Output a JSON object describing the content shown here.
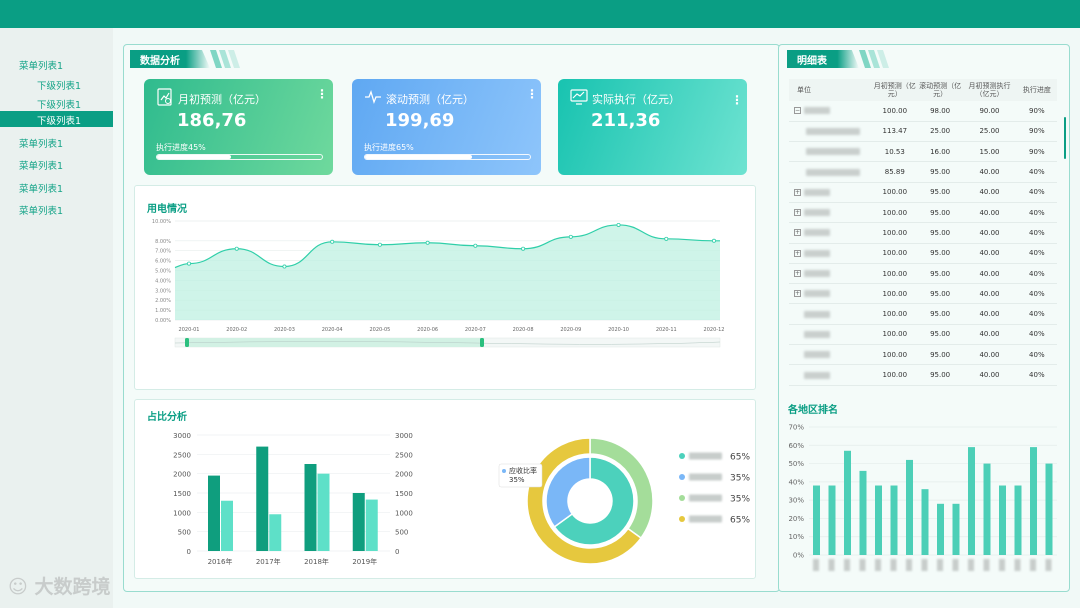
{
  "sidebar": {
    "items": [
      {
        "label": "菜单列表1",
        "level": 1,
        "active": false
      },
      {
        "label": "下级列表1",
        "level": 2,
        "active": false
      },
      {
        "label": "下级列表1",
        "level": 2,
        "active": false
      },
      {
        "label": "下级列表1",
        "level": 2,
        "active": true
      },
      {
        "label": "菜单列表1",
        "level": 1,
        "active": false
      },
      {
        "label": "菜单列表1",
        "level": 1,
        "active": false
      },
      {
        "label": "菜单列表1",
        "level": 1,
        "active": false
      },
      {
        "label": "菜单列表1",
        "level": 1,
        "active": false
      }
    ]
  },
  "analysis": {
    "title": "数据分析",
    "cards": [
      {
        "label": "月初预测（亿元）",
        "value": "186,76",
        "progress_label": "执行进度45%",
        "progress": 0.45,
        "icon": "document-chart-icon"
      },
      {
        "label": "滚动预测（亿元）",
        "value": "199,69",
        "progress_label": "执行进度65%",
        "progress": 0.65,
        "icon": "pulse-icon"
      },
      {
        "label": "实际执行（亿元）",
        "value": "211,36",
        "progress_label": "",
        "progress": null,
        "icon": "monitor-chart-icon"
      }
    ],
    "power_title": "用电情况",
    "ratio_title": "占比分析"
  },
  "detail": {
    "title": "明细表",
    "columns": [
      "单位",
      "月初预测（亿元）",
      "滚动预测（亿元）",
      "月初预测执行（亿元）",
      "执行进度"
    ],
    "rows": [
      {
        "expander": "minus",
        "indent": 0,
        "v1": "100.00",
        "v2": "98.00",
        "v3": "90.00",
        "v4": "90%"
      },
      {
        "expander": "",
        "indent": 1,
        "v1": "113.47",
        "v2": "25.00",
        "v3": "25.00",
        "v4": "90%"
      },
      {
        "expander": "",
        "indent": 1,
        "v1": "10.53",
        "v2": "16.00",
        "v3": "15.00",
        "v4": "90%"
      },
      {
        "expander": "",
        "indent": 1,
        "v1": "85.89",
        "v2": "95.00",
        "v3": "40.00",
        "v4": "40%"
      },
      {
        "expander": "plus",
        "indent": 0,
        "v1": "100.00",
        "v2": "95.00",
        "v3": "40.00",
        "v4": "40%"
      },
      {
        "expander": "plus",
        "indent": 0,
        "v1": "100.00",
        "v2": "95.00",
        "v3": "40.00",
        "v4": "40%"
      },
      {
        "expander": "plus",
        "indent": 0,
        "v1": "100.00",
        "v2": "95.00",
        "v3": "40.00",
        "v4": "40%"
      },
      {
        "expander": "plus",
        "indent": 0,
        "v1": "100.00",
        "v2": "95.00",
        "v3": "40.00",
        "v4": "40%"
      },
      {
        "expander": "plus",
        "indent": 0,
        "v1": "100.00",
        "v2": "95.00",
        "v3": "40.00",
        "v4": "40%"
      },
      {
        "expander": "plus",
        "indent": 0,
        "v1": "100.00",
        "v2": "95.00",
        "v3": "40.00",
        "v4": "40%"
      },
      {
        "expander": "",
        "indent": 0,
        "v1": "100.00",
        "v2": "95.00",
        "v3": "40.00",
        "v4": "40%"
      },
      {
        "expander": "",
        "indent": 0,
        "v1": "100.00",
        "v2": "95.00",
        "v3": "40.00",
        "v4": "40%"
      },
      {
        "expander": "",
        "indent": 0,
        "v1": "100.00",
        "v2": "95.00",
        "v3": "40.00",
        "v4": "40%"
      },
      {
        "expander": "",
        "indent": 0,
        "v1": "100.00",
        "v2": "95.00",
        "v3": "40.00",
        "v4": "40%"
      }
    ],
    "ranking_title": "各地区排名"
  },
  "watermark": "大数跨境",
  "colors": {
    "primary": "#0a9e84",
    "bar_dark": "#0f9e7e",
    "bar_light": "#5ee0c8",
    "donut_teal": "#4cd1bc",
    "donut_blue": "#7ab7f7",
    "donut_green": "#a4dd9a",
    "donut_yellow": "#e6c83e"
  },
  "chart_data": [
    {
      "type": "area",
      "title": "用电情况",
      "x": [
        "2020-01",
        "2020-02",
        "2020-03",
        "2020-04",
        "2020-05",
        "2020-06",
        "2020-07",
        "2020-08",
        "2020-09",
        "2020-10",
        "2020-11",
        "2020-12"
      ],
      "values": [
        5.7,
        7.2,
        5.4,
        7.9,
        7.6,
        7.8,
        7.5,
        7.2,
        8.4,
        9.6,
        8.2,
        8.0
      ],
      "yticks": [
        "0.00%",
        "1.00%",
        "2.00%",
        "3.00%",
        "4.00%",
        "5.00%",
        "6.00%",
        "7.00%",
        "8.00%",
        "10.00%"
      ],
      "grid": true
    },
    {
      "type": "bar",
      "title": "占比分析",
      "categories": [
        "2016年",
        "2017年",
        "2018年",
        "2019年"
      ],
      "series": [
        {
          "values": [
            1950,
            2700,
            2250,
            1500
          ]
        },
        {
          "values": [
            1300,
            950,
            2000,
            1330
          ]
        }
      ],
      "ylim": [
        0,
        3000
      ],
      "yticks": [
        "0",
        "500",
        "1000",
        "1500",
        "2000",
        "2500",
        "3000"
      ]
    },
    {
      "type": "pie",
      "tooltip": {
        "label": "应收比率",
        "value": "35%"
      },
      "legend_values": [
        "65%",
        "35%",
        "35%",
        "65%"
      ],
      "inner": [
        65,
        35
      ],
      "outer": [
        35,
        65
      ]
    },
    {
      "type": "bar",
      "title": "各地区排名",
      "values": [
        38,
        38,
        57,
        46,
        38,
        38,
        52,
        36,
        28,
        28,
        59,
        50,
        38,
        38,
        59,
        50
      ],
      "ylim": [
        0,
        70
      ],
      "yticks": [
        "0%",
        "10%",
        "20%",
        "30%",
        "40%",
        "50%",
        "60%",
        "70%"
      ]
    }
  ]
}
